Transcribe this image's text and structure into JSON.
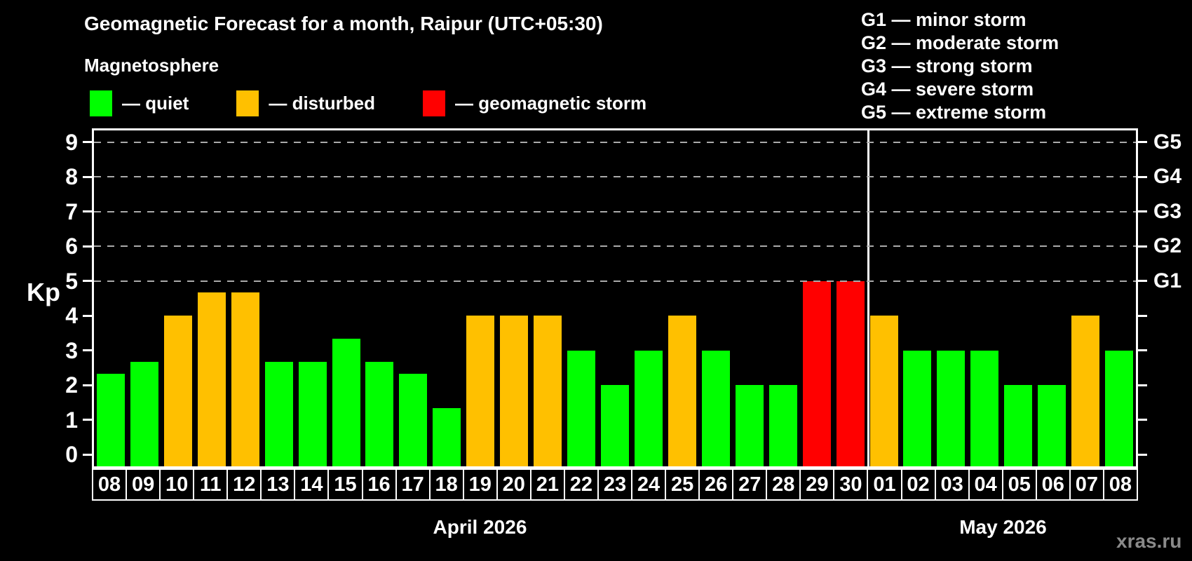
{
  "header": {
    "title": "Geomagnetic Forecast for a month, Raipur (UTC+05:30)",
    "subtitle": "Magnetosphere"
  },
  "legend": {
    "items": [
      {
        "label": "— quiet",
        "status": "quiet"
      },
      {
        "label": "— disturbed",
        "status": "disturbed"
      },
      {
        "label": "— geomagnetic storm",
        "status": "storm"
      }
    ]
  },
  "g_legend": {
    "items": [
      "G1 — minor storm",
      "G2 — moderate storm",
      "G3 — strong storm",
      "G4 — severe storm",
      "G5 — extreme storm"
    ]
  },
  "colors": {
    "quiet": "#00ff00",
    "disturbed": "#ffc000",
    "storm": "#ff0000",
    "background": "#000000",
    "text": "#ffffff",
    "grid": "#aaaaaa",
    "watermark": "#8a8a8a"
  },
  "watermark": "xras.ru",
  "chart_data": {
    "type": "bar",
    "title": "Geomagnetic Forecast for a month, Raipur (UTC+05:30)",
    "ylabel": "Kp",
    "ylim": [
      -0.4,
      9.4
    ],
    "yticks": [
      0,
      1,
      2,
      3,
      4,
      5,
      6,
      7,
      8,
      9
    ],
    "grid_levels_kp": [
      5,
      6,
      7,
      8,
      9
    ],
    "right_axis": [
      {
        "kp": 5,
        "label": "G1"
      },
      {
        "kp": 6,
        "label": "G2"
      },
      {
        "kp": 7,
        "label": "G3"
      },
      {
        "kp": 8,
        "label": "G4"
      },
      {
        "kp": 9,
        "label": "G5"
      }
    ],
    "months": [
      {
        "label": "April 2026",
        "start_index": 0,
        "days": 23
      },
      {
        "label": "May 2026",
        "start_index": 23,
        "days": 8
      }
    ],
    "month_separator_after_index": 22,
    "bars": [
      {
        "day": "08",
        "kp": 2.33,
        "status": "quiet"
      },
      {
        "day": "09",
        "kp": 2.67,
        "status": "quiet"
      },
      {
        "day": "10",
        "kp": 4.0,
        "status": "disturbed"
      },
      {
        "day": "11",
        "kp": 4.67,
        "status": "disturbed"
      },
      {
        "day": "12",
        "kp": 4.67,
        "status": "disturbed"
      },
      {
        "day": "13",
        "kp": 2.67,
        "status": "quiet"
      },
      {
        "day": "14",
        "kp": 2.67,
        "status": "quiet"
      },
      {
        "day": "15",
        "kp": 3.33,
        "status": "quiet"
      },
      {
        "day": "16",
        "kp": 2.67,
        "status": "quiet"
      },
      {
        "day": "17",
        "kp": 2.33,
        "status": "quiet"
      },
      {
        "day": "18",
        "kp": 1.33,
        "status": "quiet"
      },
      {
        "day": "19",
        "kp": 4.0,
        "status": "disturbed"
      },
      {
        "day": "20",
        "kp": 4.0,
        "status": "disturbed"
      },
      {
        "day": "21",
        "kp": 4.0,
        "status": "disturbed"
      },
      {
        "day": "22",
        "kp": 3.0,
        "status": "quiet"
      },
      {
        "day": "23",
        "kp": 2.0,
        "status": "quiet"
      },
      {
        "day": "24",
        "kp": 3.0,
        "status": "quiet"
      },
      {
        "day": "25",
        "kp": 4.0,
        "status": "disturbed"
      },
      {
        "day": "26",
        "kp": 3.0,
        "status": "quiet"
      },
      {
        "day": "27",
        "kp": 2.0,
        "status": "quiet"
      },
      {
        "day": "28",
        "kp": 2.0,
        "status": "quiet"
      },
      {
        "day": "29",
        "kp": 5.0,
        "status": "storm"
      },
      {
        "day": "30",
        "kp": 5.0,
        "status": "storm"
      },
      {
        "day": "01",
        "kp": 4.0,
        "status": "disturbed"
      },
      {
        "day": "02",
        "kp": 3.0,
        "status": "quiet"
      },
      {
        "day": "03",
        "kp": 3.0,
        "status": "quiet"
      },
      {
        "day": "04",
        "kp": 3.0,
        "status": "quiet"
      },
      {
        "day": "05",
        "kp": 2.0,
        "status": "quiet"
      },
      {
        "day": "06",
        "kp": 2.0,
        "status": "quiet"
      },
      {
        "day": "07",
        "kp": 4.0,
        "status": "disturbed"
      },
      {
        "day": "08",
        "kp": 3.0,
        "status": "quiet"
      }
    ]
  }
}
